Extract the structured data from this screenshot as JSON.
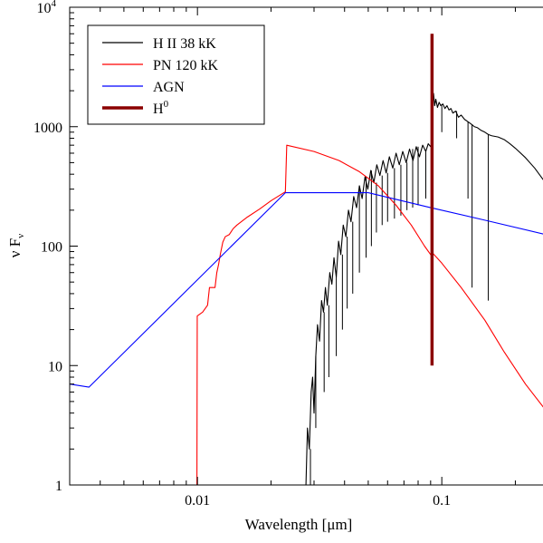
{
  "chart_data": {
    "type": "line",
    "title": "",
    "xlabel": "Wavelength [μm]",
    "ylabel": "ν Fν",
    "xscale": "log",
    "yscale": "log",
    "xlim": [
      0.003,
      0.3
    ],
    "ylim": [
      1,
      10000
    ],
    "grid": false,
    "legend_position": "top-left",
    "x_ticks": [
      {
        "value": 0.01,
        "label": "0.01"
      },
      {
        "value": 0.1,
        "label": "0.1"
      }
    ],
    "y_ticks": [
      {
        "value": 1,
        "label": "1"
      },
      {
        "value": 10,
        "label": "10"
      },
      {
        "value": 100,
        "label": "100"
      },
      {
        "value": 1000,
        "label": "1000"
      },
      {
        "value": 10000,
        "label": "10",
        "sup": "4"
      }
    ],
    "series": [
      {
        "name": "H II 38 kK",
        "color": "#000000",
        "kind": "spectrum",
        "points": [
          [
            0.0278,
            1
          ],
          [
            0.0282,
            3
          ],
          [
            0.0287,
            2
          ],
          [
            0.0292,
            6
          ],
          [
            0.0296,
            8
          ],
          [
            0.03,
            4
          ],
          [
            0.0305,
            12
          ],
          [
            0.031,
            22
          ],
          [
            0.0316,
            16
          ],
          [
            0.0322,
            35
          ],
          [
            0.0328,
            28
          ],
          [
            0.0334,
            45
          ],
          [
            0.034,
            32
          ],
          [
            0.0348,
            60
          ],
          [
            0.0355,
            48
          ],
          [
            0.0362,
            80
          ],
          [
            0.037,
            55
          ],
          [
            0.0378,
            110
          ],
          [
            0.0386,
            85
          ],
          [
            0.0395,
            150
          ],
          [
            0.0405,
            120
          ],
          [
            0.0415,
            200
          ],
          [
            0.0425,
            160
          ],
          [
            0.0436,
            260
          ],
          [
            0.0448,
            210
          ],
          [
            0.046,
            320
          ],
          [
            0.0472,
            250
          ],
          [
            0.0485,
            380
          ],
          [
            0.0498,
            300
          ],
          [
            0.0512,
            430
          ],
          [
            0.0527,
            340
          ],
          [
            0.0542,
            480
          ],
          [
            0.0558,
            390
          ],
          [
            0.0575,
            520
          ],
          [
            0.0592,
            410
          ],
          [
            0.061,
            560
          ],
          [
            0.063,
            450
          ],
          [
            0.065,
            600
          ],
          [
            0.067,
            480
          ],
          [
            0.0692,
            620
          ],
          [
            0.0715,
            500
          ],
          [
            0.0738,
            650
          ],
          [
            0.0762,
            520
          ],
          [
            0.0786,
            680
          ],
          [
            0.081,
            560
          ],
          [
            0.0835,
            700
          ],
          [
            0.086,
            620
          ],
          [
            0.088,
            720
          ],
          [
            0.09,
            680
          ],
          [
            0.0912,
            750
          ],
          [
            0.0915,
            1400
          ],
          [
            0.0925,
            1900
          ],
          [
            0.0935,
            1500
          ],
          [
            0.0945,
            1700
          ],
          [
            0.096,
            1450
          ],
          [
            0.0975,
            1600
          ],
          [
            0.099,
            1500
          ],
          [
            0.101,
            1550
          ],
          [
            0.103,
            1420
          ],
          [
            0.105,
            1500
          ],
          [
            0.107,
            1380
          ],
          [
            0.109,
            1420
          ],
          [
            0.111,
            1300
          ],
          [
            0.114,
            1350
          ],
          [
            0.117,
            1200
          ],
          [
            0.12,
            1250
          ],
          [
            0.124,
            1150
          ],
          [
            0.128,
            1100
          ],
          [
            0.132,
            1050
          ],
          [
            0.136,
            1000
          ],
          [
            0.14,
            980
          ],
          [
            0.145,
            930
          ],
          [
            0.15,
            900
          ],
          [
            0.155,
            860
          ],
          [
            0.16,
            840
          ],
          [
            0.17,
            820
          ],
          [
            0.18,
            780
          ],
          [
            0.19,
            720
          ],
          [
            0.2,
            660
          ],
          [
            0.22,
            550
          ],
          [
            0.24,
            450
          ],
          [
            0.26,
            360
          ],
          [
            0.28,
            280
          ],
          [
            0.3,
            200
          ]
        ],
        "absorption_lines": [
          [
            0.029,
            0.8
          ],
          [
            0.0305,
            3
          ],
          [
            0.033,
            6
          ],
          [
            0.0345,
            8
          ],
          [
            0.037,
            12
          ],
          [
            0.0392,
            20
          ],
          [
            0.041,
            30
          ],
          [
            0.0432,
            40
          ],
          [
            0.046,
            60
          ],
          [
            0.049,
            80
          ],
          [
            0.0515,
            100
          ],
          [
            0.054,
            130
          ],
          [
            0.057,
            150
          ],
          [
            0.06,
            160
          ],
          [
            0.064,
            170
          ],
          [
            0.068,
            180
          ],
          [
            0.072,
            200
          ],
          [
            0.076,
            210
          ],
          [
            0.08,
            220
          ],
          [
            0.086,
            250
          ],
          [
            0.1,
            900
          ],
          [
            0.115,
            800
          ],
          [
            0.128,
            250
          ],
          [
            0.133,
            45
          ],
          [
            0.155,
            35
          ]
        ]
      },
      {
        "name": "PN 120 kK",
        "color": "#ff0000",
        "kind": "line",
        "points": [
          [
            0.00995,
            1
          ],
          [
            0.00998,
            26
          ],
          [
            0.0105,
            28
          ],
          [
            0.011,
            32
          ],
          [
            0.0112,
            45
          ],
          [
            0.0118,
            45
          ],
          [
            0.012,
            60
          ],
          [
            0.0122,
            70
          ],
          [
            0.0124,
            85
          ],
          [
            0.0127,
            108
          ],
          [
            0.013,
            120
          ],
          [
            0.0135,
            125
          ],
          [
            0.014,
            140
          ],
          [
            0.0145,
            150
          ],
          [
            0.016,
            175
          ],
          [
            0.018,
            205
          ],
          [
            0.02,
            240
          ],
          [
            0.0229,
            285
          ],
          [
            0.0232,
            700
          ],
          [
            0.03,
            620
          ],
          [
            0.038,
            520
          ],
          [
            0.046,
            420
          ],
          [
            0.055,
            320
          ],
          [
            0.065,
            220
          ],
          [
            0.075,
            150
          ],
          [
            0.085,
            100
          ],
          [
            0.0911,
            82
          ],
          [
            0.0915,
            88
          ],
          [
            0.1,
            72
          ],
          [
            0.12,
            45
          ],
          [
            0.15,
            24
          ],
          [
            0.18,
            13
          ],
          [
            0.22,
            7
          ],
          [
            0.26,
            4.5
          ],
          [
            0.3,
            3.5
          ]
        ]
      },
      {
        "name": "AGN",
        "color": "#0000ff",
        "kind": "line",
        "points": [
          [
            0.003,
            7
          ],
          [
            0.0036,
            6.6
          ],
          [
            0.0229,
            280
          ],
          [
            0.05,
            280
          ],
          [
            0.09,
            210
          ],
          [
            0.15,
            165
          ],
          [
            0.3,
            118
          ]
        ]
      },
      {
        "name": "H",
        "sup": "0",
        "color": "#8b0000",
        "kind": "vline",
        "x": 0.0912,
        "y_range": [
          10,
          6000
        ]
      }
    ]
  }
}
